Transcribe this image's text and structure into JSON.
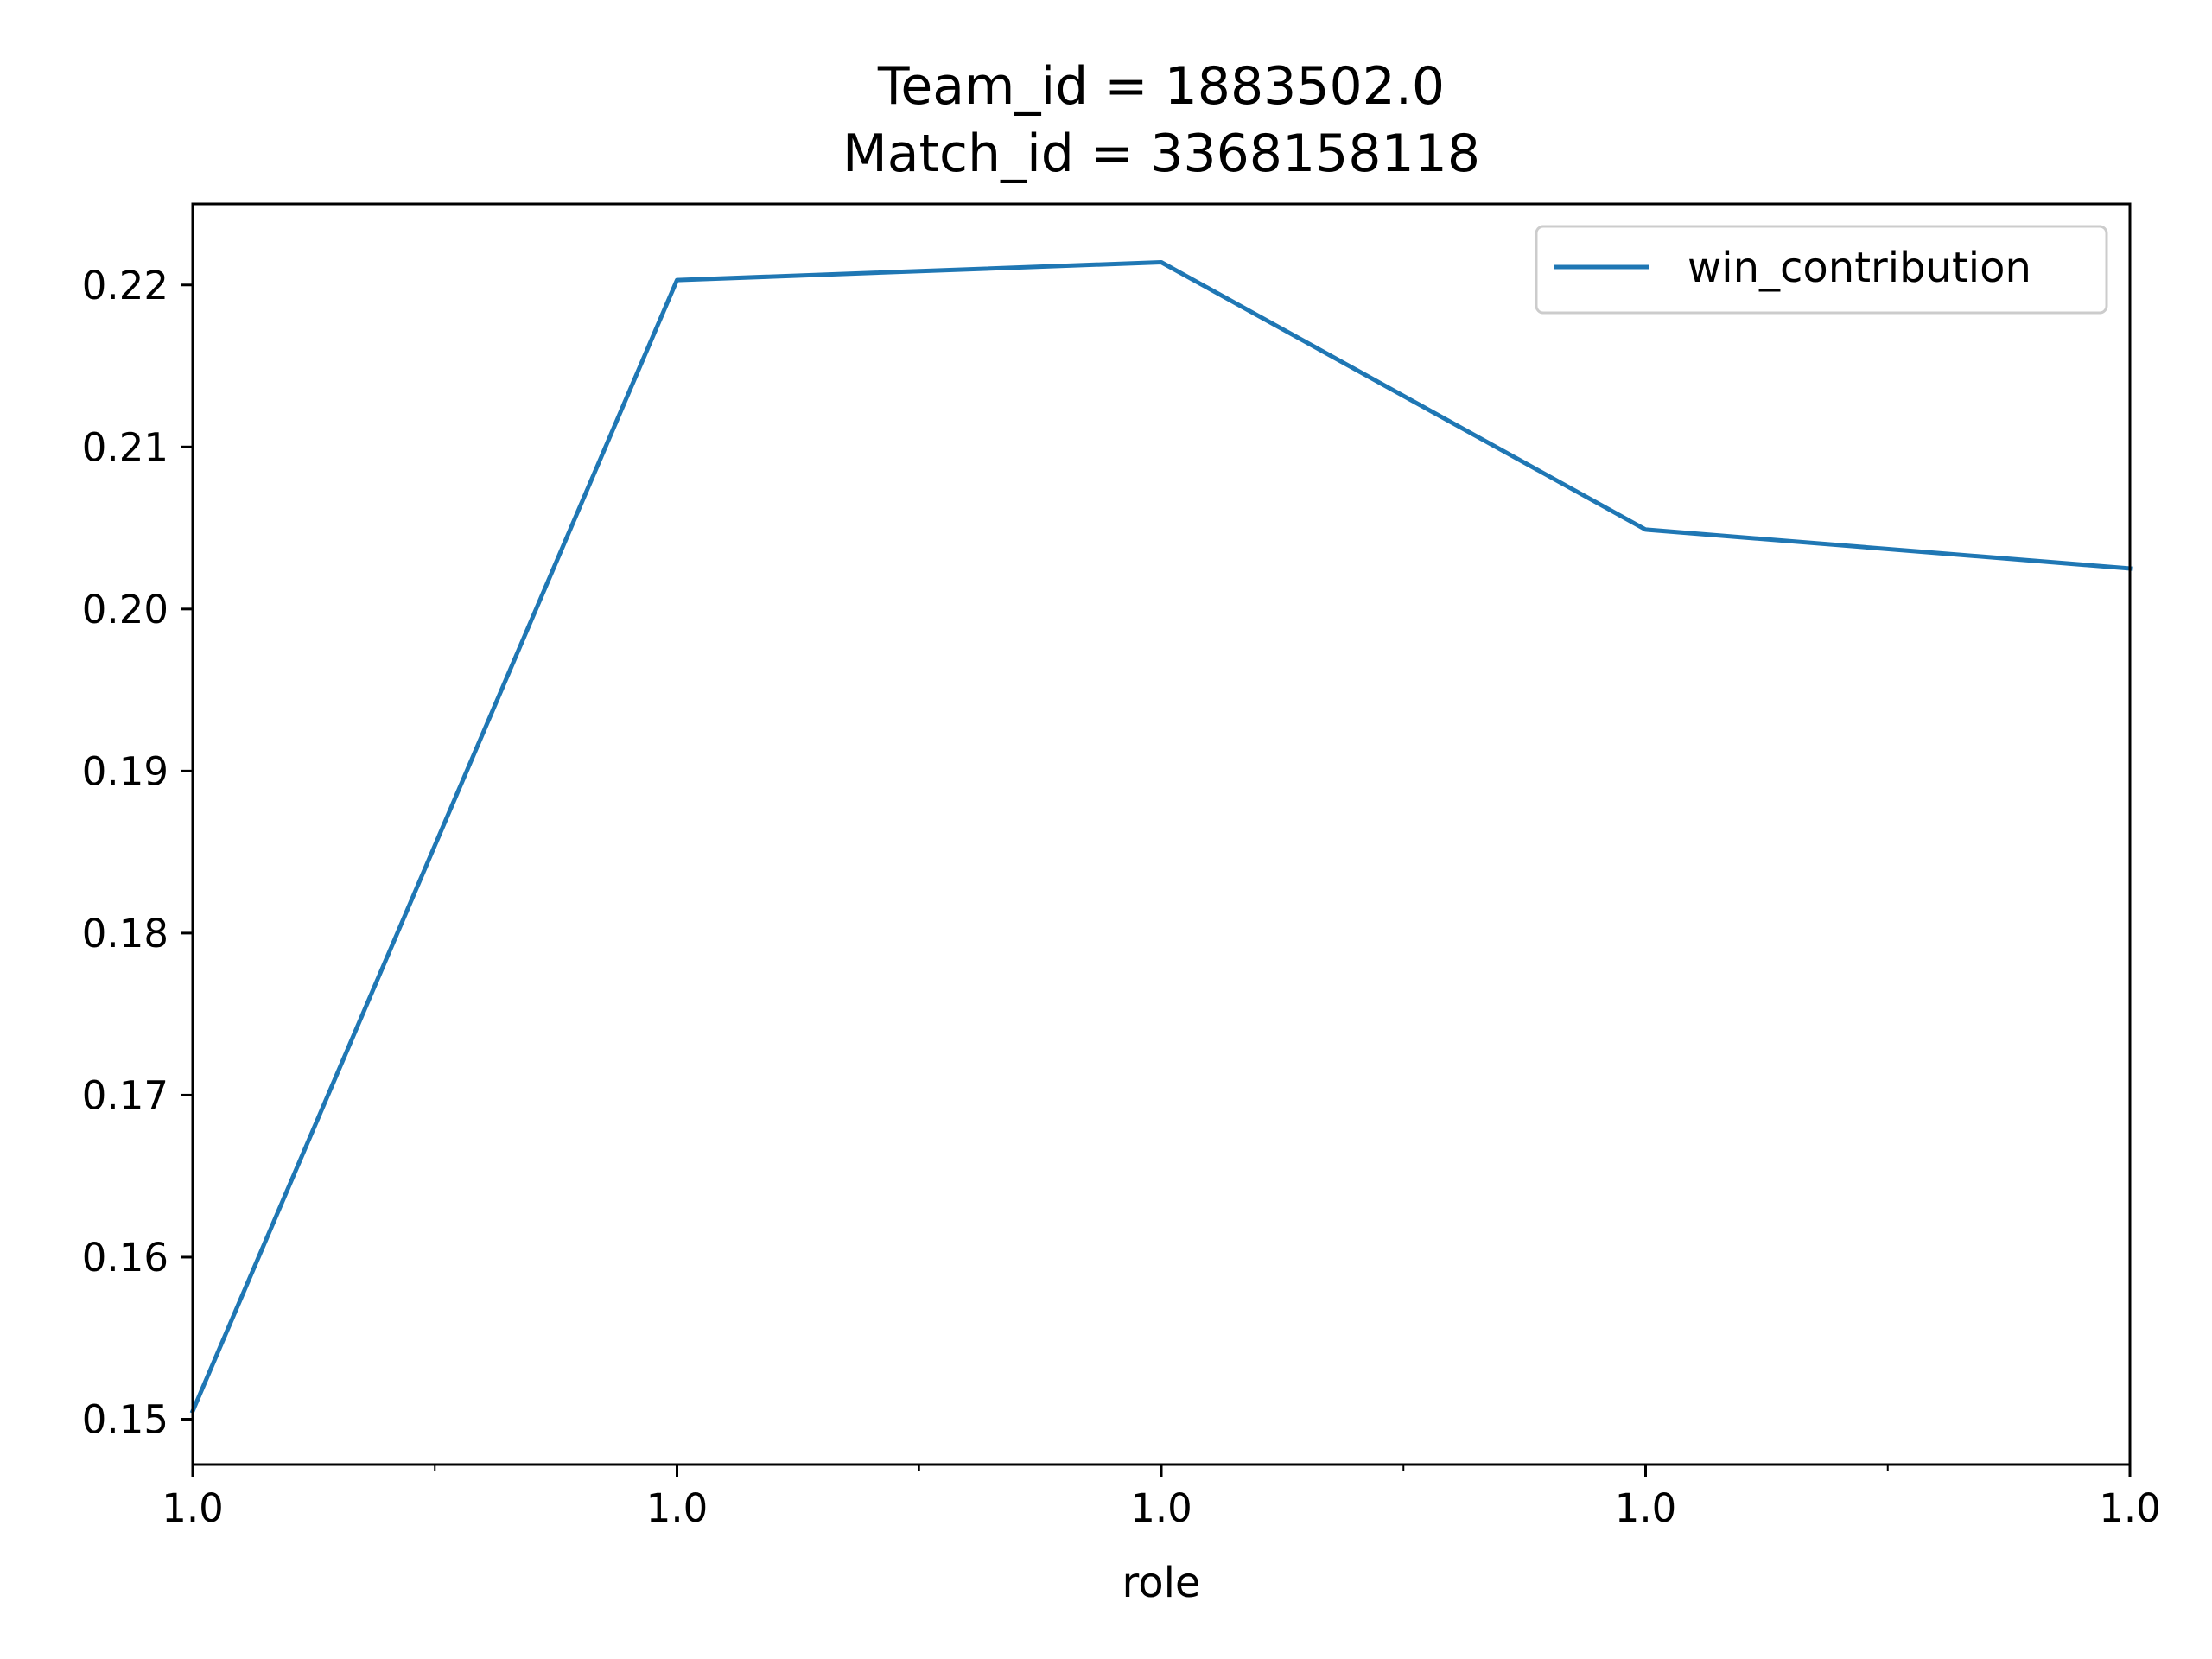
{
  "chart_data": {
    "type": "line",
    "title_lines": [
      "Team_id = 1883502.0",
      "Match_id = 3368158118"
    ],
    "xlabel": "role",
    "ylabel": "",
    "x": [
      0,
      1,
      2,
      3,
      4
    ],
    "x_tick_labels": [
      "1.0",
      "1.0",
      "1.0",
      "1.0",
      "1.0"
    ],
    "x_minor_ticks": [
      0.5,
      1.5,
      2.5,
      3.5
    ],
    "xlim": [
      0,
      4
    ],
    "ylim": [
      0.1472,
      0.225
    ],
    "y_ticks": [
      0.15,
      0.16,
      0.17,
      0.18,
      0.19,
      0.2,
      0.21,
      0.22
    ],
    "y_tick_labels": [
      "0.15",
      "0.16",
      "0.17",
      "0.18",
      "0.19",
      "0.20",
      "0.21",
      "0.22"
    ],
    "series": [
      {
        "name": "win_contribution",
        "color": "#1f77b4",
        "values": [
          0.1505,
          0.2203,
          0.2214,
          0.2049,
          0.2025
        ]
      }
    ],
    "legend_position": "top-right",
    "grid": false
  }
}
